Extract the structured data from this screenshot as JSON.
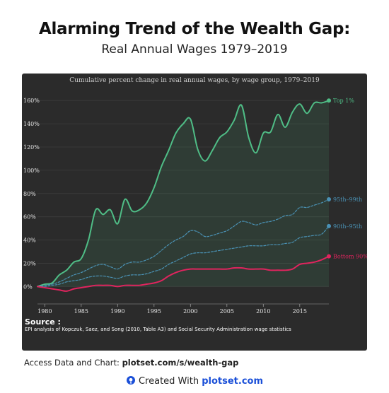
{
  "header": {
    "title": "Alarming Trend of the Wealth Gap:",
    "subtitle": "Real Annual Wages 1979–2019"
  },
  "footer": {
    "access_prefix": "Access Data and Chart: ",
    "access_link": "plotset.com/s/wealth-gap",
    "created_prefix": "Created With ",
    "created_brand": "plotset.com"
  },
  "source": {
    "label": "Source :",
    "text": "EPI analysis of Kopczuk, Saez, and Song (2010, Table A3) and Social Security Administration wage statistics"
  },
  "colors": {
    "top1": "#4fbd86",
    "p95_99": "#4a92b5",
    "p90_95": "#4a92b5",
    "bottom90": "#e0245e",
    "panel": "#2b2b2b",
    "brand": "#1a4fd8"
  },
  "chart_data": {
    "type": "line",
    "title": "Cumulative percent change in real annual wages, by wage group, 1979–2019",
    "xlim": [
      1979,
      2019
    ],
    "ylim": [
      -15,
      165
    ],
    "xticks": [
      "1980",
      "1985",
      "1990",
      "1995",
      "2000",
      "2005",
      "2010",
      "2015"
    ],
    "yticks": [
      "0%",
      "20%",
      "40%",
      "60%",
      "80%",
      "100%",
      "120%",
      "140%",
      "160%"
    ],
    "grid": true,
    "x": [
      1979,
      1980,
      1981,
      1982,
      1983,
      1984,
      1985,
      1986,
      1987,
      1988,
      1989,
      1990,
      1991,
      1992,
      1993,
      1994,
      1995,
      1996,
      1997,
      1998,
      1999,
      2000,
      2001,
      2002,
      2003,
      2004,
      2005,
      2006,
      2007,
      2008,
      2009,
      2010,
      2011,
      2012,
      2013,
      2014,
      2015,
      2016,
      2017,
      2018,
      2019
    ],
    "series": [
      {
        "name": "Top 1%",
        "values": [
          0,
          2,
          3,
          10,
          14,
          21,
          24,
          40,
          66,
          62,
          66,
          54,
          75,
          65,
          66,
          72,
          85,
          103,
          117,
          132,
          140,
          144,
          118,
          108,
          117,
          128,
          133,
          143,
          156,
          128,
          115,
          132,
          133,
          148,
          137,
          150,
          157,
          149,
          158,
          158,
          160
        ]
      },
      {
        "name": "95th–99th",
        "values": [
          0,
          1,
          2,
          4,
          7,
          10,
          12,
          15,
          18,
          19,
          17,
          15,
          19,
          21,
          21,
          23,
          26,
          31,
          36,
          40,
          43,
          48,
          47,
          43,
          44,
          46,
          48,
          52,
          56,
          55,
          53,
          55,
          56,
          58,
          61,
          62,
          68,
          68,
          70,
          72,
          75
        ]
      },
      {
        "name": "90th–95th",
        "values": [
          0,
          0,
          1,
          2,
          4,
          5,
          6,
          8,
          9,
          9,
          8,
          7,
          9,
          10,
          10,
          11,
          13,
          15,
          19,
          22,
          25,
          28,
          29,
          29,
          30,
          31,
          32,
          33,
          34,
          35,
          35,
          35,
          36,
          36,
          37,
          38,
          42,
          43,
          44,
          45,
          52
        ]
      },
      {
        "name": "Bottom 90%",
        "values": [
          0,
          -1,
          -2,
          -3,
          -4,
          -2,
          -1,
          0,
          1,
          1,
          1,
          0,
          1,
          1,
          1,
          2,
          3,
          5,
          9,
          12,
          14,
          15,
          15,
          15,
          15,
          15,
          15,
          16,
          16,
          15,
          15,
          15,
          14,
          14,
          14,
          15,
          19,
          20,
          21,
          23,
          26
        ]
      }
    ]
  }
}
